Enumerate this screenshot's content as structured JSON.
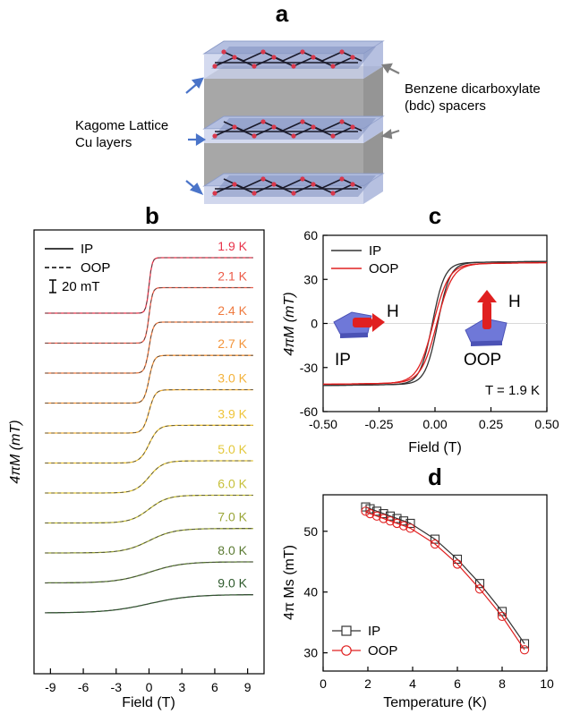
{
  "panel_a": {
    "letter": "a",
    "label_left_1": "Kagome Lattice",
    "label_left_2": "Cu layers",
    "label_right_1": "Benzene dicarboxylate",
    "label_right_2": "(bdc) spacers"
  },
  "chart_data": [
    {
      "panel": "b",
      "type": "line",
      "xlabel": "Field (T)",
      "ylabel": "4πM (mT)",
      "xlim": [
        -10.5,
        10.5
      ],
      "xticks": [
        "-9",
        "-6",
        "-3",
        "0",
        "3",
        "6",
        "9"
      ],
      "xtick_values": [
        -9,
        -6,
        -3,
        0,
        3,
        6,
        9
      ],
      "legend": [
        "IP",
        "OOP",
        "20 mT"
      ],
      "series": [
        {
          "name": "1.9 K",
          "color": "#e8334a",
          "width": 0.28
        },
        {
          "name": "2.1 K",
          "color": "#ec5a47",
          "width": 0.32
        },
        {
          "name": "2.4 K",
          "color": "#ef7a3f",
          "width": 0.38
        },
        {
          "name": "2.7 K",
          "color": "#f3953b",
          "width": 0.45
        },
        {
          "name": "3.0 K",
          "color": "#f3b23b",
          "width": 0.55
        },
        {
          "name": "3.9 K",
          "color": "#efc53a",
          "width": 0.85
        },
        {
          "name": "5.0 K",
          "color": "#e3c83b",
          "width": 1.25
        },
        {
          "name": "6.0 K",
          "color": "#c7c03a",
          "width": 1.7
        },
        {
          "name": "7.0 K",
          "color": "#9aa538",
          "width": 2.3
        },
        {
          "name": "8.0 K",
          "color": "#5a7a32",
          "width": 3.0
        },
        {
          "name": "9.0 K",
          "color": "#2e5a2c",
          "width": 3.8
        }
      ]
    },
    {
      "panel": "c",
      "type": "line",
      "xlabel": "Field (T)",
      "ylabel": "4πM (mT)",
      "xlim": [
        -0.5,
        0.5
      ],
      "ylim": [
        -60,
        60
      ],
      "xticks": [
        "-0.50",
        "-0.25",
        "0.00",
        "0.25",
        "0.50"
      ],
      "xtick_values": [
        -0.5,
        -0.25,
        0,
        0.25,
        0.5
      ],
      "yticks": [
        "-60",
        "-30",
        "0",
        "30",
        "60"
      ],
      "ytick_values": [
        -60,
        -30,
        0,
        30,
        60
      ],
      "annotation": "T = 1.9 K",
      "inset_labels": [
        "H",
        "IP",
        "H",
        "OOP"
      ],
      "series": [
        {
          "name": "IP",
          "color": "#333333",
          "ms": 48,
          "coercive": 0.012,
          "width": 0.055
        },
        {
          "name": "OOP",
          "color": "#e02020",
          "ms": 47,
          "coercive": 0.008,
          "width": 0.07
        }
      ]
    },
    {
      "panel": "d",
      "type": "line",
      "xlabel": "Temperature (K)",
      "ylabel": "4π Ms (mT)",
      "xlim": [
        0,
        10
      ],
      "ylim": [
        27,
        56
      ],
      "xticks": [
        "0",
        "2",
        "4",
        "6",
        "8",
        "10"
      ],
      "xtick_values": [
        0,
        2,
        4,
        6,
        8,
        10
      ],
      "yticks": [
        "30",
        "40",
        "50"
      ],
      "ytick_values": [
        30,
        40,
        50
      ],
      "x": [
        1.9,
        2.1,
        2.4,
        2.7,
        3.0,
        3.3,
        3.6,
        3.9,
        5.0,
        6.0,
        7.0,
        8.0,
        9.0
      ],
      "series": [
        {
          "name": "IP",
          "color": "#333333",
          "marker": "square",
          "values": [
            54.0,
            53.7,
            53.3,
            52.9,
            52.5,
            52.1,
            51.7,
            51.3,
            48.7,
            45.4,
            41.4,
            36.8,
            31.5
          ]
        },
        {
          "name": "OOP",
          "color": "#e02020",
          "marker": "circle",
          "values": [
            53.3,
            52.9,
            52.5,
            52.1,
            51.7,
            51.3,
            50.9,
            50.5,
            47.9,
            44.6,
            40.5,
            36.0,
            30.5
          ]
        }
      ]
    }
  ]
}
